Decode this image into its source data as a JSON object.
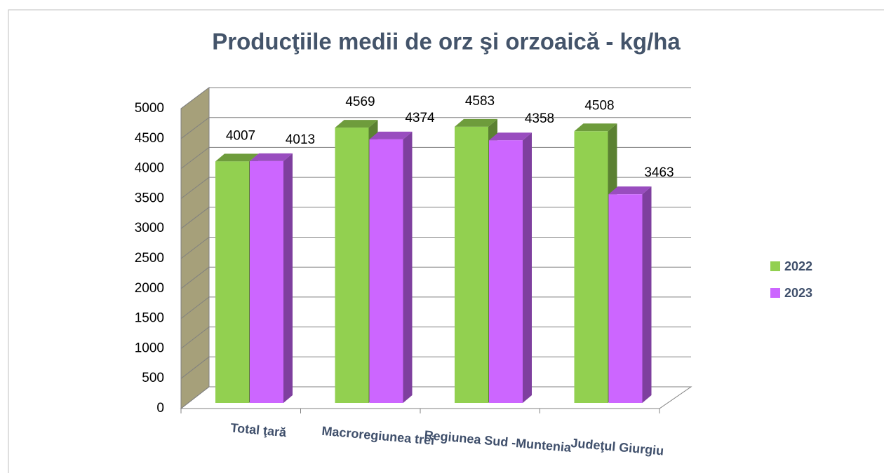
{
  "chart_data": {
    "type": "bar3d",
    "title": "Producţiile medii de orz şi orzoaică  - kg/ha",
    "categories": [
      "Total ţară",
      "Macroregiunea trei",
      "Regiunea Sud -Muntenia",
      "Judeţul Giurgiu"
    ],
    "series": [
      {
        "name": "2022",
        "color": "#92d050",
        "values": [
          4007,
          4569,
          4583,
          4508
        ]
      },
      {
        "name": "2023",
        "color": "#cc66ff",
        "values": [
          4013,
          4374,
          4358,
          3463
        ]
      }
    ],
    "ylim": [
      0,
      5000
    ],
    "yticks": [
      0,
      500,
      1000,
      1500,
      2000,
      2500,
      3000,
      3500,
      4000,
      4500,
      5000
    ],
    "grid": true,
    "legend": "right"
  }
}
